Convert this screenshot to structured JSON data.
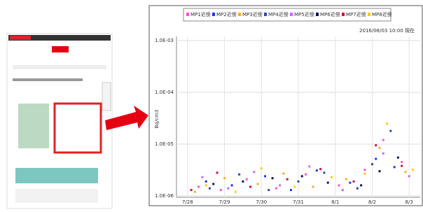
{
  "chart_data": {
    "type": "scatter",
    "y_label": "Bq/cm3",
    "timestamp": "2016/08/03 10:00 現在",
    "log_y": true,
    "ylim": [
      1e-06,
      0.001
    ],
    "yticks": [
      {
        "value": 0.001,
        "label": "1.0E-03"
      },
      {
        "value": 0.0001,
        "label": "1.0E-04"
      },
      {
        "value": 1e-05,
        "label": "1.0E-05"
      },
      {
        "value": 1e-06,
        "label": "1.0E-06"
      }
    ],
    "xlim": [
      -0.3,
      6.3
    ],
    "xticks": [
      {
        "value": 0,
        "label": "7/28"
      },
      {
        "value": 1,
        "label": "7/29"
      },
      {
        "value": 2,
        "label": "7/30"
      },
      {
        "value": 3,
        "label": "7/31"
      },
      {
        "value": 4,
        "label": "8/1"
      },
      {
        "value": 5,
        "label": "8/2"
      },
      {
        "value": 6,
        "label": "8/3"
      }
    ],
    "series": [
      {
        "name": "MP1近傍",
        "color": "#ff55cc",
        "x": [
          0.3,
          0.9,
          1.6,
          2.4,
          3.2,
          4.1,
          4.8,
          5.3,
          5.8
        ],
        "values": [
          1.5e-06,
          1.3e-06,
          2.1e-06,
          1.4e-06,
          2.6e-06,
          1.6e-06,
          3.2e-06,
          1.2e-05,
          4.5e-06
        ]
      },
      {
        "name": "MP2近傍",
        "color": "#2233ee",
        "x": [
          0.5,
          1.2,
          2.1,
          2.8,
          3.5,
          4.4,
          5.1,
          5.6
        ],
        "values": [
          1.9e-06,
          1.6e-06,
          2.4e-06,
          1.3e-06,
          3.1e-06,
          1.8e-06,
          5.2e-06,
          3.6e-06
        ]
      },
      {
        "name": "MP3近傍",
        "color": "#ffaa22",
        "x": [
          0.2,
          1.0,
          1.9,
          2.6,
          3.4,
          4.3,
          5.2,
          5.9
        ],
        "values": [
          1.2e-06,
          2.2e-06,
          1.7e-06,
          2.7e-06,
          1.5e-06,
          2.1e-06,
          8.5e-06,
          2.9e-06
        ]
      },
      {
        "name": "MP4近傍",
        "color": "#3344aa",
        "x": [
          0.6,
          1.4,
          2.2,
          3.0,
          3.7,
          4.6,
          5.0,
          5.5
        ],
        "values": [
          1.4e-06,
          2.6e-06,
          1.3e-06,
          1.9e-06,
          2.8e-06,
          1.4e-06,
          4.1e-06,
          1.8e-05
        ]
      },
      {
        "name": "MP5近傍",
        "color": "#cc66ff",
        "x": [
          0.4,
          1.1,
          1.8,
          2.5,
          3.3,
          4.2,
          5.3,
          6.0
        ],
        "values": [
          2.3e-06,
          1.4e-06,
          2.9e-06,
          1.6e-06,
          3.7e-06,
          1.3e-06,
          6.6e-06,
          2.4e-06
        ]
      },
      {
        "name": "MP6近傍",
        "color": "#111166",
        "x": [
          0.7,
          1.5,
          2.3,
          3.1,
          3.8,
          4.7,
          5.2,
          5.7
        ],
        "values": [
          1.7e-06,
          1.9e-06,
          2.2e-06,
          2.4e-06,
          1.8e-06,
          1.6e-06,
          3e-06,
          5.5e-06
        ]
      },
      {
        "name": "MP7近傍",
        "color": "#cc1144",
        "x": [
          0.1,
          0.8,
          1.7,
          2.7,
          3.6,
          4.5,
          5.1,
          5.8
        ],
        "values": [
          1.3e-06,
          2.8e-06,
          1.5e-06,
          2.1e-06,
          3.3e-06,
          1.9e-06,
          9.5e-06,
          3.8e-06
        ]
      },
      {
        "name": "MP8近傍",
        "color": "#ffcc00",
        "x": [
          0.5,
          1.3,
          2.0,
          2.9,
          3.9,
          4.8,
          5.4,
          6.1
        ],
        "values": [
          1.6e-06,
          1.2e-06,
          3.4e-06,
          1.5e-06,
          2.3e-06,
          2.7e-06,
          2.5e-05,
          3.2e-06
        ]
      }
    ]
  }
}
